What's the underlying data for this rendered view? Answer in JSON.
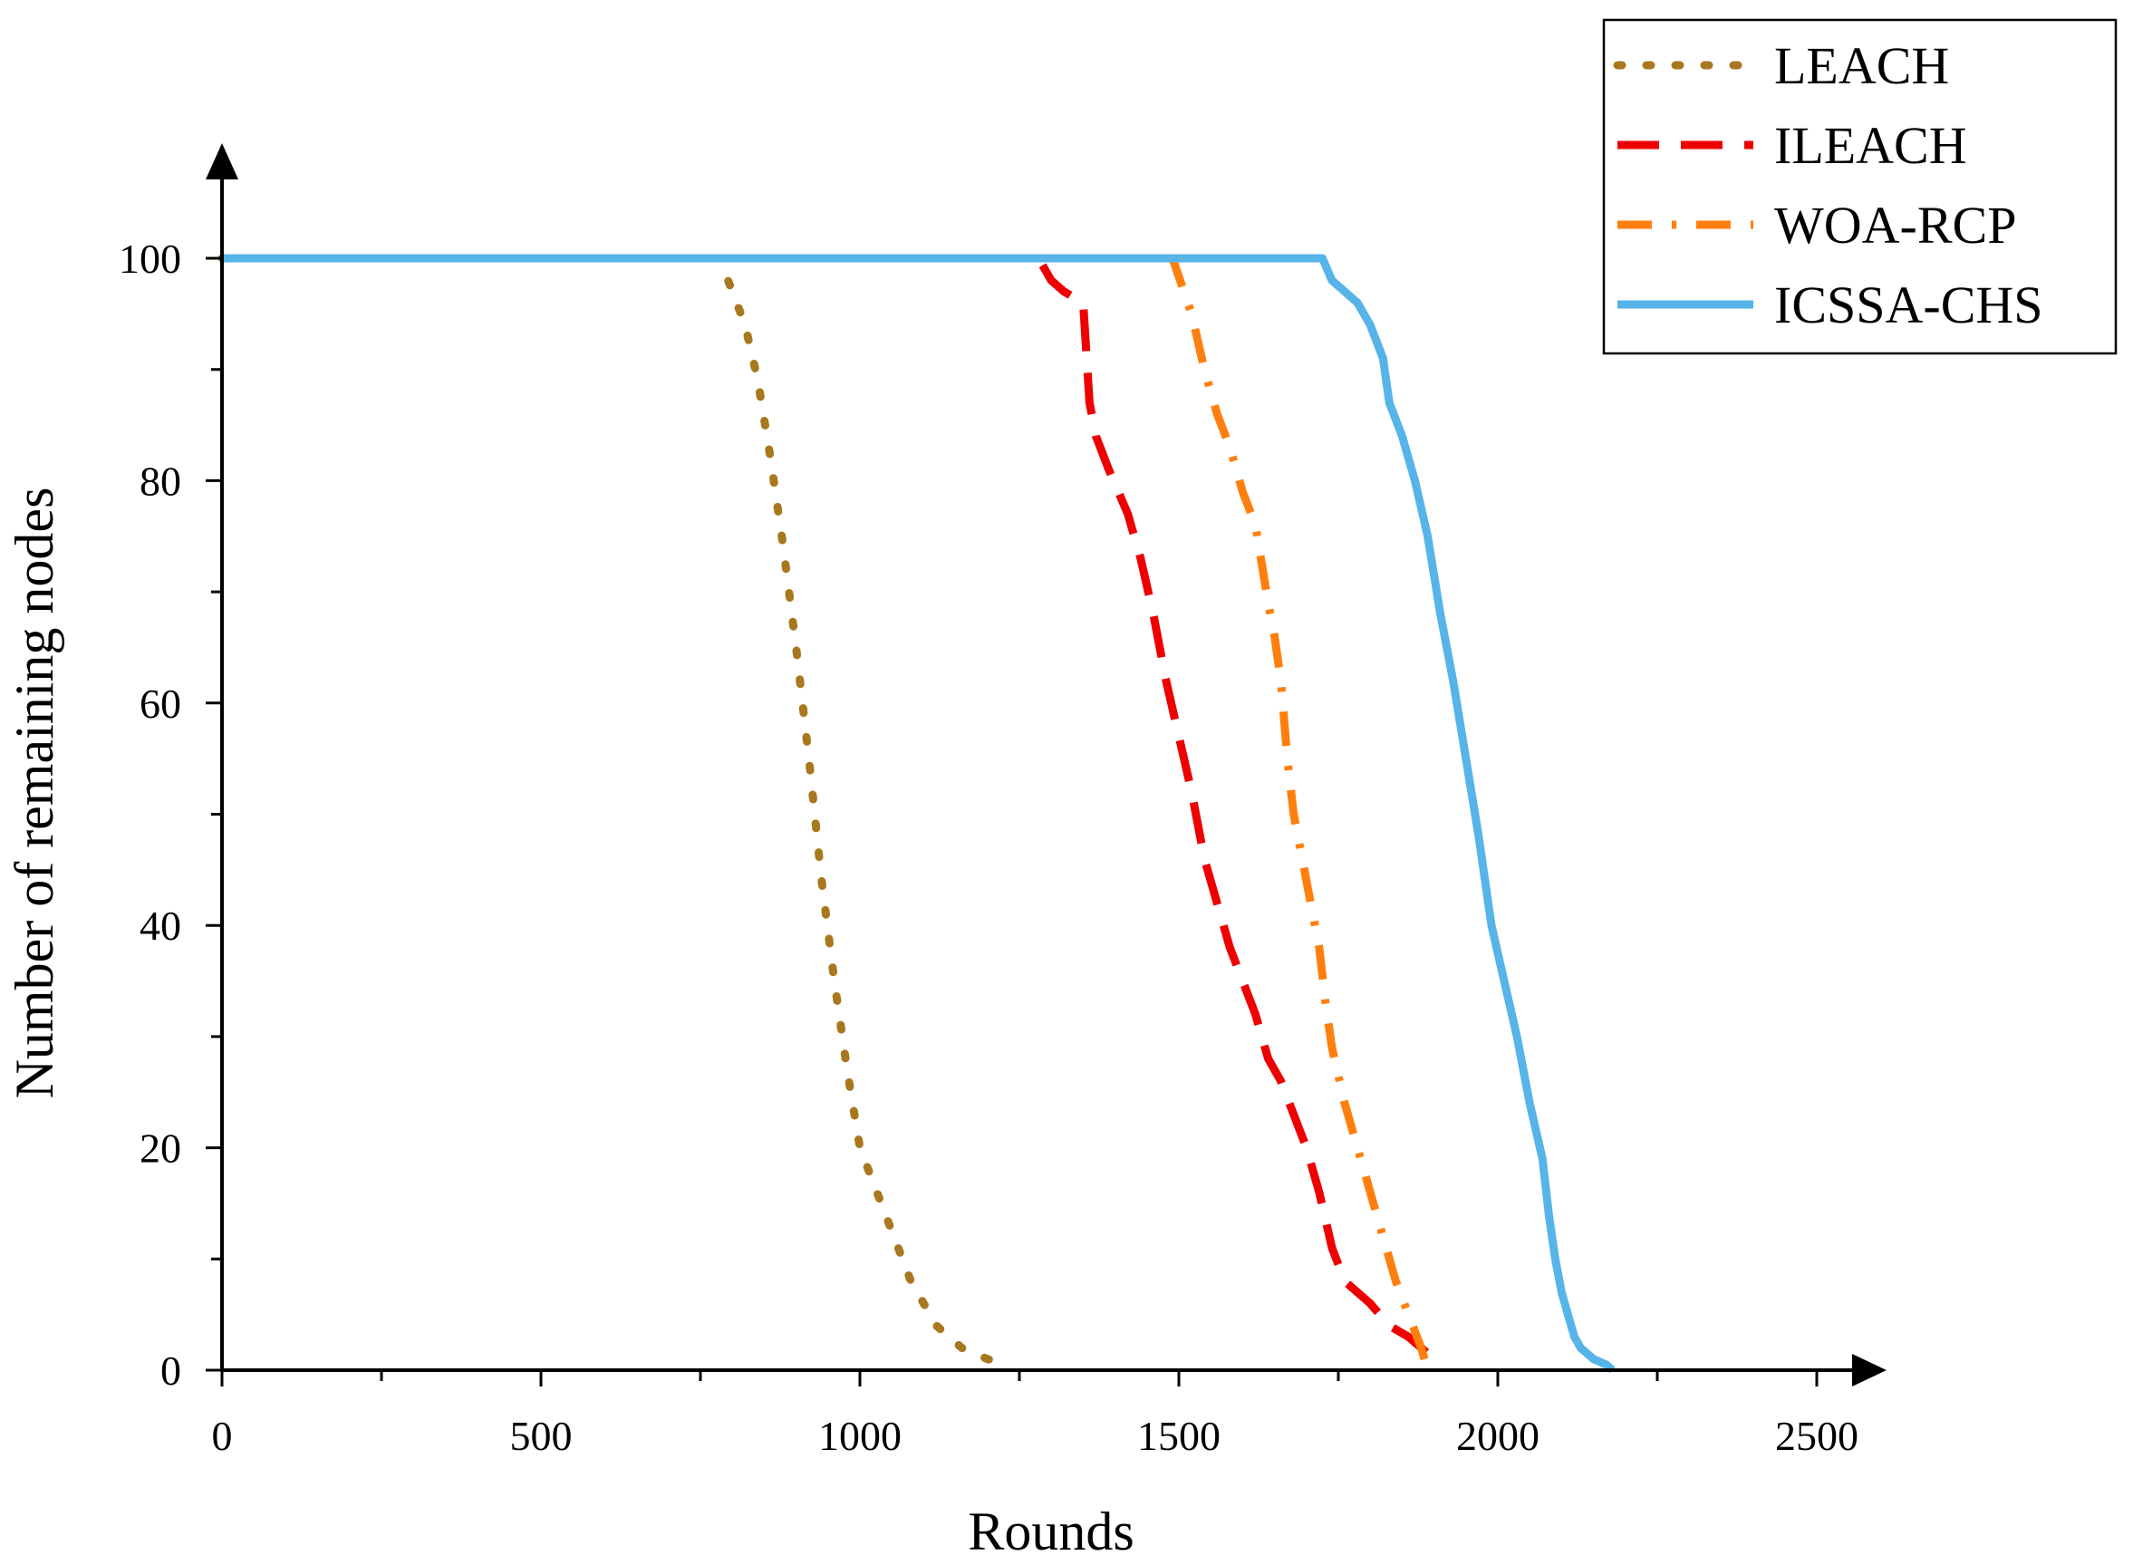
{
  "chart_data": {
    "type": "line",
    "xlabel": "Rounds",
    "ylabel": "Number of remaining nodes",
    "xlim": [
      0,
      2500
    ],
    "ylim": [
      0,
      100
    ],
    "xticks": [
      0,
      500,
      1000,
      1500,
      2000,
      2500
    ],
    "yticks": [
      0,
      20,
      40,
      60,
      80,
      100
    ],
    "x_minor_step": 250,
    "y_minor_step": 10,
    "grid": false,
    "legend_position": "top-right",
    "series": [
      {
        "name": "LEACH",
        "color": "#a8781e",
        "dash": "dotted",
        "x": [
          0,
          780,
          800,
          820,
          840,
          860,
          880,
          900,
          920,
          940,
          960,
          980,
          1000,
          1040,
          1080,
          1120,
          1160,
          1200,
          1230
        ],
        "y": [
          100,
          100,
          97,
          94,
          89,
          82,
          74,
          65,
          55,
          44,
          35,
          27,
          20,
          14,
          8,
          4,
          2,
          1,
          0.5
        ]
      },
      {
        "name": "ILEACH",
        "color": "#ee0000",
        "dash": "dashed",
        "x": [
          0,
          1280,
          1300,
          1320,
          1350,
          1360,
          1370,
          1390,
          1420,
          1440,
          1460,
          1480,
          1500,
          1520,
          1540,
          1560,
          1580,
          1600,
          1620,
          1640,
          1660,
          1680,
          1700,
          1720,
          1740,
          1760,
          1800,
          1830,
          1860,
          1900
        ],
        "y": [
          100,
          100,
          98,
          97,
          96,
          87,
          84,
          81,
          77,
          73,
          68,
          62,
          57,
          52,
          46,
          42,
          38,
          35,
          32,
          28,
          26,
          23,
          20,
          16,
          11,
          8,
          6,
          4,
          3,
          1
        ]
      },
      {
        "name": "WOA-RCP",
        "color": "#ff7f0e",
        "dash": "dashdot",
        "x": [
          0,
          1490,
          1520,
          1540,
          1560,
          1580,
          1600,
          1620,
          1640,
          1650,
          1660,
          1670,
          1680,
          1700,
          1720,
          1730,
          1740,
          1760,
          1780,
          1800,
          1820,
          1840,
          1860,
          1880,
          1890
        ],
        "y": [
          100,
          100,
          95,
          90,
          86,
          83,
          79,
          76,
          69,
          66,
          62,
          55,
          50,
          44,
          38,
          33,
          29,
          24,
          20,
          16,
          12,
          8,
          5,
          2,
          0
        ]
      },
      {
        "name": "ICSSA-CHS",
        "color": "#56b4e9",
        "dash": "solid",
        "x": [
          0,
          1725,
          1740,
          1760,
          1780,
          1800,
          1820,
          1830,
          1850,
          1870,
          1890,
          1910,
          1930,
          1950,
          1970,
          1990,
          2010,
          2030,
          2050,
          2070,
          2080,
          2090,
          2100,
          2110,
          2120,
          2130,
          2150,
          2170,
          2180
        ],
        "y": [
          100,
          100,
          98,
          97,
          96,
          94,
          91,
          87,
          84,
          80,
          75,
          68,
          62,
          55,
          48,
          40,
          35,
          30,
          24,
          19,
          14,
          10,
          7,
          5,
          3,
          2,
          1,
          0.5,
          0
        ]
      }
    ]
  }
}
